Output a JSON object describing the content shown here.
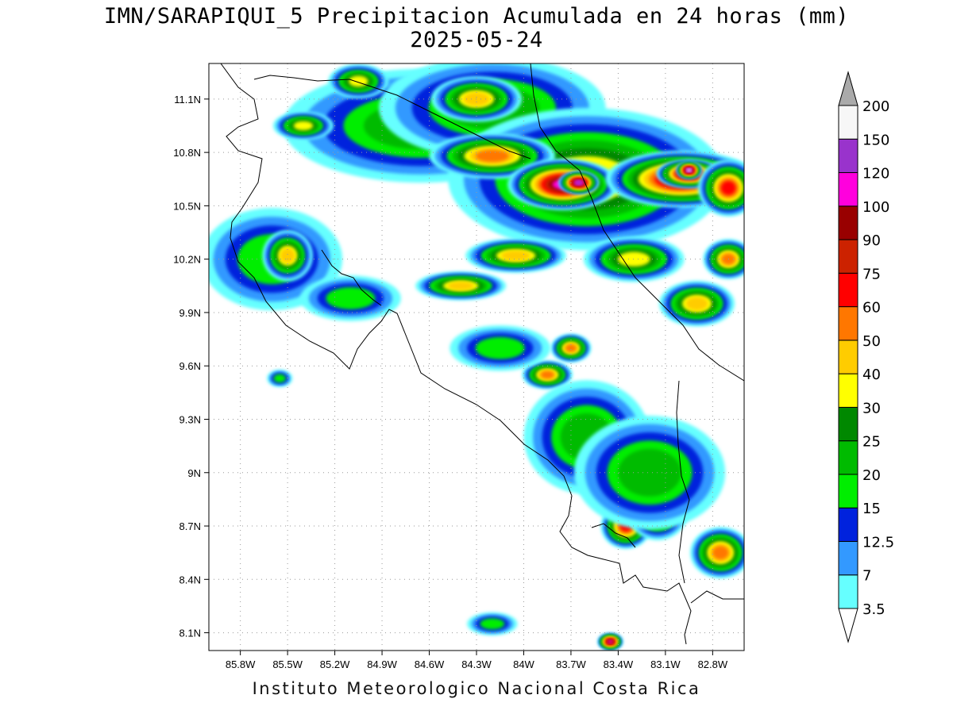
{
  "title": {
    "line1": "IMN/SARAPIQUI_5 Precipitacion Acumulada en 24 horas (mm)",
    "line2": "2025-05-24"
  },
  "footer": "Instituto Meteorologico Nacional Costa Rica",
  "map": {
    "lon_range": [
      -86.0,
      -82.6
    ],
    "lat_range": [
      8.0,
      11.3
    ],
    "lon_ticks": [
      {
        "value": -85.8,
        "label": "85.8W"
      },
      {
        "value": -85.5,
        "label": "85.5W"
      },
      {
        "value": -85.2,
        "label": "85.2W"
      },
      {
        "value": -84.9,
        "label": "84.9W"
      },
      {
        "value": -84.6,
        "label": "84.6W"
      },
      {
        "value": -84.3,
        "label": "84.3W"
      },
      {
        "value": -84.0,
        "label": "84W"
      },
      {
        "value": -83.7,
        "label": "83.7W"
      },
      {
        "value": -83.4,
        "label": "83.4W"
      },
      {
        "value": -83.1,
        "label": "83.1W"
      },
      {
        "value": -82.8,
        "label": "82.8W"
      }
    ],
    "lat_ticks": [
      {
        "value": 8.1,
        "label": "8.1N"
      },
      {
        "value": 8.4,
        "label": "8.4N"
      },
      {
        "value": 8.7,
        "label": "8.7N"
      },
      {
        "value": 9.0,
        "label": "9N"
      },
      {
        "value": 9.3,
        "label": "9.3N"
      },
      {
        "value": 9.6,
        "label": "9.6N"
      },
      {
        "value": 9.9,
        "label": "9.9N"
      },
      {
        "value": 10.2,
        "label": "10.2N"
      },
      {
        "value": 10.5,
        "label": "10.5N"
      },
      {
        "value": 10.8,
        "label": "10.8N"
      },
      {
        "value": 11.1,
        "label": "11.1N"
      }
    ],
    "precip_blobs": [
      {
        "lon": -85.6,
        "lat": 10.2,
        "mm": 18,
        "rx": 0.28,
        "ry": 0.18
      },
      {
        "lon": -85.5,
        "lat": 10.22,
        "mm": 45,
        "rx": 0.1,
        "ry": 0.09
      },
      {
        "lon": -85.1,
        "lat": 9.98,
        "mm": 16,
        "rx": 0.2,
        "ry": 0.08
      },
      {
        "lon": -84.65,
        "lat": 10.95,
        "mm": 20,
        "rx": 0.55,
        "ry": 0.2
      },
      {
        "lon": -84.2,
        "lat": 11.05,
        "mm": 22,
        "rx": 0.45,
        "ry": 0.18
      },
      {
        "lon": -84.3,
        "lat": 11.1,
        "mm": 40,
        "rx": 0.18,
        "ry": 0.08
      },
      {
        "lon": -85.05,
        "lat": 11.2,
        "mm": 35,
        "rx": 0.12,
        "ry": 0.06
      },
      {
        "lon": -85.4,
        "lat": 10.95,
        "mm": 30,
        "rx": 0.12,
        "ry": 0.05
      },
      {
        "lon": -83.6,
        "lat": 10.65,
        "mm": 30,
        "rx": 0.55,
        "ry": 0.25
      },
      {
        "lon": -84.2,
        "lat": 10.78,
        "mm": 55,
        "rx": 0.25,
        "ry": 0.08
      },
      {
        "lon": -83.75,
        "lat": 10.62,
        "mm": 110,
        "rx": 0.22,
        "ry": 0.09
      },
      {
        "lon": -83.65,
        "lat": 10.63,
        "mm": 130,
        "rx": 0.08,
        "ry": 0.04
      },
      {
        "lon": -83.0,
        "lat": 10.65,
        "mm": 90,
        "rx": 0.3,
        "ry": 0.1
      },
      {
        "lon": -82.95,
        "lat": 10.68,
        "mm": 140,
        "rx": 0.13,
        "ry": 0.05
      },
      {
        "lon": -82.95,
        "lat": 10.7,
        "mm": 170,
        "rx": 0.05,
        "ry": 0.03
      },
      {
        "lon": -82.7,
        "lat": 10.6,
        "mm": 60,
        "rx": 0.12,
        "ry": 0.1
      },
      {
        "lon": -84.05,
        "lat": 10.22,
        "mm": 45,
        "rx": 0.2,
        "ry": 0.06
      },
      {
        "lon": -84.4,
        "lat": 10.05,
        "mm": 40,
        "rx": 0.18,
        "ry": 0.05
      },
      {
        "lon": -83.3,
        "lat": 10.2,
        "mm": 35,
        "rx": 0.2,
        "ry": 0.08
      },
      {
        "lon": -82.9,
        "lat": 9.95,
        "mm": 45,
        "rx": 0.15,
        "ry": 0.08
      },
      {
        "lon": -82.7,
        "lat": 10.2,
        "mm": 55,
        "rx": 0.1,
        "ry": 0.07
      },
      {
        "lon": -83.7,
        "lat": 9.7,
        "mm": 50,
        "rx": 0.08,
        "ry": 0.05
      },
      {
        "lon": -83.85,
        "lat": 9.55,
        "mm": 50,
        "rx": 0.1,
        "ry": 0.05
      },
      {
        "lon": -83.5,
        "lat": 9.4,
        "mm": 45,
        "rx": 0.07,
        "ry": 0.05
      },
      {
        "lon": -83.35,
        "lat": 8.7,
        "mm": 60,
        "rx": 0.1,
        "ry": 0.08
      },
      {
        "lon": -83.15,
        "lat": 8.78,
        "mm": 45,
        "rx": 0.12,
        "ry": 0.1
      },
      {
        "lon": -82.75,
        "lat": 8.55,
        "mm": 50,
        "rx": 0.12,
        "ry": 0.09
      },
      {
        "lon": -83.6,
        "lat": 9.2,
        "mm": 20,
        "rx": 0.25,
        "ry": 0.2
      },
      {
        "lon": -83.2,
        "lat": 9.0,
        "mm": 20,
        "rx": 0.3,
        "ry": 0.2
      },
      {
        "lon": -84.15,
        "lat": 9.7,
        "mm": 18,
        "rx": 0.2,
        "ry": 0.08
      },
      {
        "lon": -84.2,
        "lat": 8.15,
        "mm": 15,
        "rx": 0.1,
        "ry": 0.04
      },
      {
        "lon": -83.45,
        "lat": 8.05,
        "mm": 100,
        "rx": 0.05,
        "ry": 0.03
      },
      {
        "lon": -85.55,
        "lat": 9.53,
        "mm": 15,
        "rx": 0.05,
        "ry": 0.03
      }
    ]
  },
  "colorbar": {
    "colors": [
      "#66ffff",
      "#3399ff",
      "#0022dd",
      "#00ee00",
      "#00bb00",
      "#008800",
      "#ffff00",
      "#ffcc00",
      "#ff7700",
      "#ff0000",
      "#cc2200",
      "#990000",
      "#ff00dd",
      "#9933cc",
      "#f7f7f7"
    ],
    "top_color": "#aaaaaa",
    "bottom_color": "#ffffff",
    "labels": [
      "3.5",
      "7",
      "12.5",
      "15",
      "20",
      "25",
      "30",
      "40",
      "50",
      "60",
      "75",
      "90",
      "100",
      "120",
      "150",
      "200"
    ]
  }
}
